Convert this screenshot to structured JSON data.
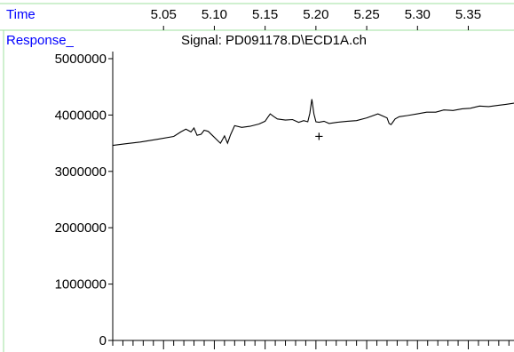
{
  "chart_data": {
    "type": "line",
    "title": "Signal: PD091178.D\\ECD1A.ch",
    "xlabel": "Time",
    "ylabel": "Response_",
    "x_ticks": [
      "5.05",
      "5.10",
      "5.15",
      "5.20",
      "5.25",
      "5.30",
      "5.35"
    ],
    "x_tick_values": [
      5.05,
      5.1,
      5.15,
      5.2,
      5.25,
      5.3,
      5.35
    ],
    "y_ticks": [
      "0",
      "1000000",
      "2000000",
      "3000000",
      "4000000",
      "5000000"
    ],
    "y_tick_values": [
      0,
      1000000,
      2000000,
      3000000,
      4000000,
      5000000
    ],
    "xlim": [
      5.0,
      5.395
    ],
    "ylim": [
      0,
      5000000
    ],
    "grid": false,
    "marker_symbol": "+",
    "marker_point": {
      "x": 5.203,
      "y": 3630000
    },
    "series": [
      {
        "x": [
          5.0,
          5.013,
          5.027,
          5.044,
          5.06,
          5.067,
          5.072,
          5.077,
          5.08,
          5.083,
          5.087,
          5.09,
          5.094,
          5.098,
          5.103,
          5.106,
          5.11,
          5.113,
          5.116,
          5.12,
          5.127,
          5.135,
          5.144,
          5.15,
          5.153,
          5.155,
          5.158,
          5.162,
          5.17,
          5.177,
          5.183,
          5.188,
          5.192,
          5.194,
          5.196,
          5.198,
          5.2,
          5.203,
          5.208,
          5.213,
          5.221,
          5.231,
          5.24,
          5.25,
          5.261,
          5.27,
          5.272,
          5.274,
          5.276,
          5.278,
          5.282,
          5.29,
          5.3,
          5.309,
          5.318,
          5.326,
          5.335,
          5.344,
          5.352,
          5.361,
          5.37,
          5.379,
          5.387,
          5.395
        ],
        "y": [
          3460000,
          3490000,
          3520000,
          3570000,
          3620000,
          3700000,
          3750000,
          3700000,
          3770000,
          3640000,
          3660000,
          3730000,
          3710000,
          3640000,
          3550000,
          3500000,
          3630000,
          3500000,
          3650000,
          3810000,
          3780000,
          3800000,
          3840000,
          3890000,
          3970000,
          4020000,
          3980000,
          3930000,
          3910000,
          3920000,
          3870000,
          3900000,
          3880000,
          4030000,
          4280000,
          4020000,
          3880000,
          3870000,
          3890000,
          3850000,
          3870000,
          3890000,
          3900000,
          3950000,
          4020000,
          3950000,
          3850000,
          3830000,
          3880000,
          3930000,
          3970000,
          3990000,
          4020000,
          4050000,
          4050000,
          4090000,
          4080000,
          4110000,
          4120000,
          4160000,
          4150000,
          4170000,
          4190000,
          4210000
        ]
      }
    ]
  }
}
